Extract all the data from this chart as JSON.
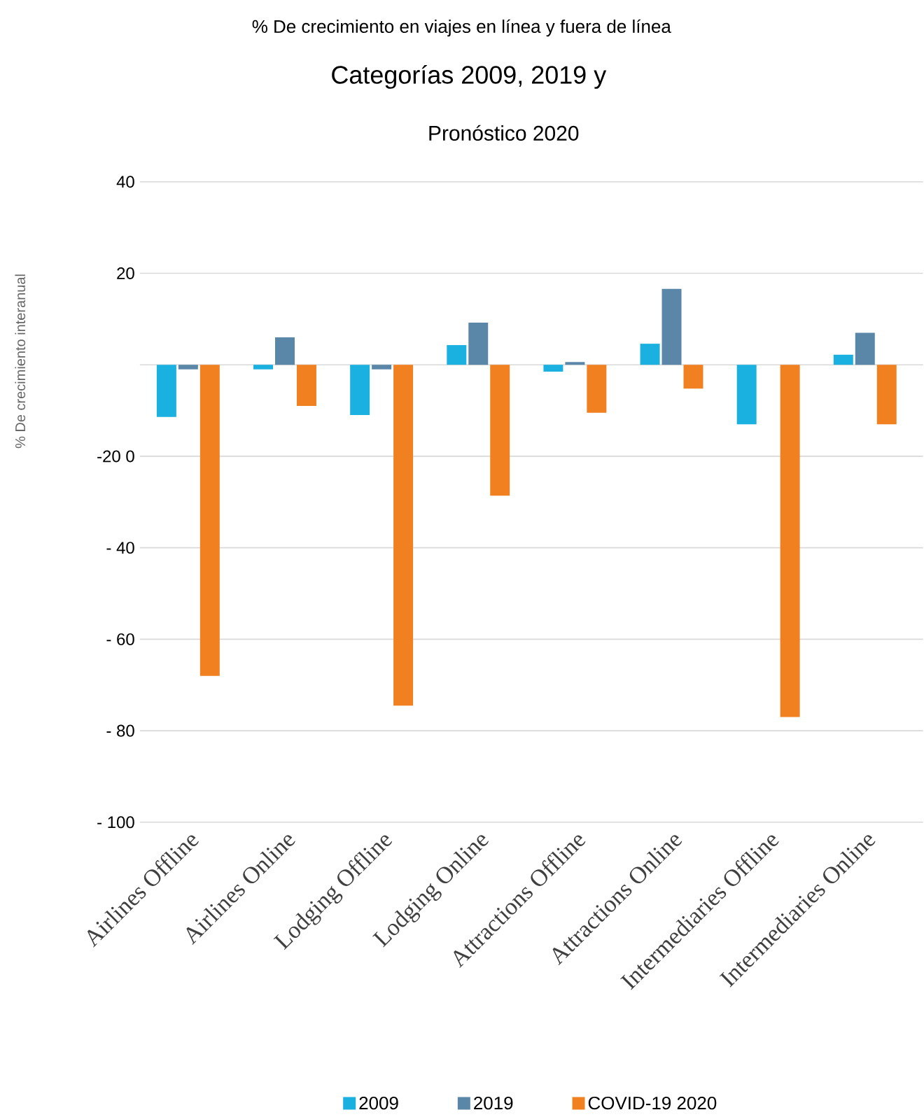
{
  "chart_data": {
    "type": "bar",
    "title": "% De crecimiento en viajes en línea y fuera de línea",
    "subtitle": "Categorías 2009, 2019 y",
    "annotations": [
      "Pronóstico 2020"
    ],
    "ylabel": "% De crecimiento interanual",
    "categories": [
      "Airlines Offline",
      "Airlines Online",
      "Lodging Offline",
      "Lodging Online",
      "Attractions Offline",
      "Attractions Online",
      "Intermediaries Offline",
      "Intermediaries Online"
    ],
    "series": [
      {
        "name": "2009",
        "color": "#1ab0e0",
        "values": [
          -11.4,
          -1,
          -11,
          4.3,
          -1.5,
          4.6,
          -13,
          2.2
        ]
      },
      {
        "name": "2019",
        "color": "#5a87a8",
        "values": [
          -1,
          6,
          -1,
          9.2,
          0.6,
          16.6,
          0,
          7
        ]
      },
      {
        "name": "COVID-19 2020",
        "color": "#f08020",
        "values": [
          -68,
          -9,
          -74.5,
          -28.6,
          -10.5,
          -5.2,
          -77,
          -13
        ]
      }
    ],
    "ylim": [
      -100,
      40
    ],
    "yticks": [
      {
        "value": 40,
        "label": "40"
      },
      {
        "value": 20,
        "label": "20"
      },
      {
        "value": 0,
        "label": null
      },
      {
        "value": -20,
        "label": "-20 0"
      },
      {
        "value": -40,
        "label": "- 40"
      },
      {
        "value": -60,
        "label": "- 60"
      },
      {
        "value": -80,
        "label": "- 80"
      },
      {
        "value": -100,
        "label": "- 100"
      }
    ],
    "grid": "y",
    "legend": "bottom"
  }
}
